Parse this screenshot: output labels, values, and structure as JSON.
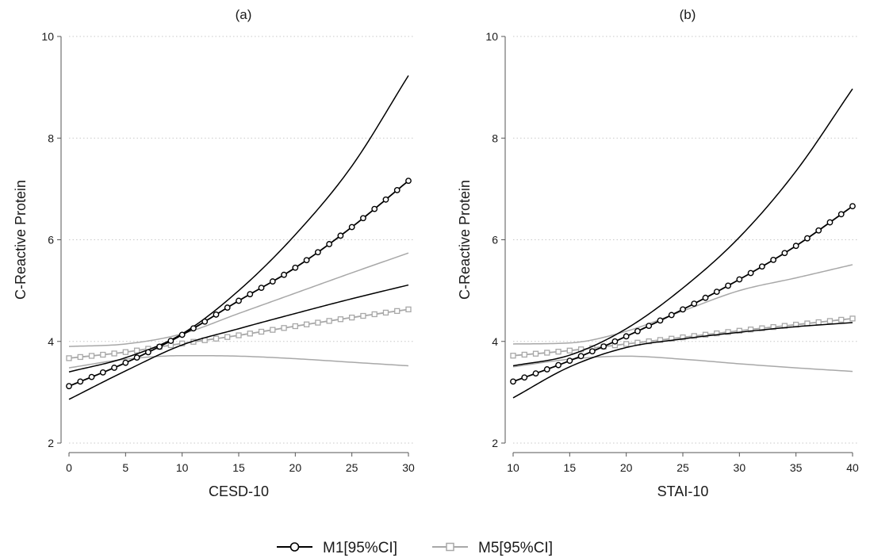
{
  "chart_data": [
    {
      "type": "line",
      "title": "(a)",
      "xlabel": "CESD-10",
      "ylabel": "C-Reactive Protein",
      "xlim": [
        0,
        30
      ],
      "ylim": [
        2,
        10
      ],
      "xticks": [
        0,
        5,
        10,
        15,
        20,
        25,
        30
      ],
      "yticks": [
        2,
        4,
        6,
        8,
        10
      ],
      "grid": "horizontal dotted",
      "series": [
        {
          "model": "M1",
          "role": "estimate",
          "marker": "circle",
          "color": "#000000",
          "x": [
            0,
            5,
            10,
            15,
            20,
            25,
            30
          ],
          "y": [
            3.12,
            3.58,
            4.13,
            4.8,
            5.45,
            6.25,
            7.16
          ]
        },
        {
          "model": "M1",
          "role": "upper",
          "marker": "none",
          "color": "#000000",
          "x": [
            0,
            5,
            10,
            15,
            20,
            25,
            30
          ],
          "y": [
            3.4,
            3.68,
            4.15,
            5.0,
            6.1,
            7.45,
            9.23
          ]
        },
        {
          "model": "M1",
          "role": "lower",
          "marker": "none",
          "color": "#000000",
          "x": [
            0,
            5,
            10,
            15,
            20,
            25,
            30
          ],
          "y": [
            2.86,
            3.42,
            3.93,
            4.25,
            4.55,
            4.84,
            5.11
          ]
        },
        {
          "model": "M5",
          "role": "estimate",
          "marker": "square",
          "color": "#a8a8a8",
          "x": [
            0,
            5,
            10,
            15,
            20,
            25,
            30
          ],
          "y": [
            3.67,
            3.79,
            3.96,
            4.12,
            4.3,
            4.47,
            4.63
          ]
        },
        {
          "model": "M5",
          "role": "upper",
          "marker": "none",
          "color": "#a8a8a8",
          "x": [
            0,
            5,
            10,
            15,
            20,
            25,
            30
          ],
          "y": [
            3.9,
            3.95,
            4.15,
            4.55,
            4.95,
            5.35,
            5.74
          ]
        },
        {
          "model": "M5",
          "role": "lower",
          "marker": "none",
          "color": "#a8a8a8",
          "x": [
            0,
            5,
            10,
            15,
            20,
            25,
            30
          ],
          "y": [
            3.48,
            3.65,
            3.72,
            3.71,
            3.66,
            3.59,
            3.52
          ]
        }
      ]
    },
    {
      "type": "line",
      "title": "(b)",
      "xlabel": "STAI-10",
      "ylabel": "C-Reactive Protein",
      "xlim": [
        10,
        40
      ],
      "ylim": [
        2,
        10
      ],
      "xticks": [
        10,
        15,
        20,
        25,
        30,
        35,
        40
      ],
      "yticks": [
        2,
        4,
        6,
        8,
        10
      ],
      "grid": "horizontal dotted",
      "series": [
        {
          "model": "M1",
          "role": "estimate",
          "marker": "circle",
          "color": "#000000",
          "x": [
            10,
            15,
            20,
            25,
            30,
            35,
            40
          ],
          "y": [
            3.21,
            3.62,
            4.1,
            4.63,
            5.22,
            5.88,
            6.66
          ]
        },
        {
          "model": "M1",
          "role": "upper",
          "marker": "none",
          "color": "#000000",
          "x": [
            10,
            15,
            20,
            25,
            30,
            35,
            40
          ],
          "y": [
            3.52,
            3.73,
            4.25,
            5.05,
            6.05,
            7.35,
            8.97
          ]
        },
        {
          "model": "M1",
          "role": "lower",
          "marker": "none",
          "color": "#000000",
          "x": [
            10,
            15,
            20,
            25,
            30,
            35,
            40
          ],
          "y": [
            2.89,
            3.5,
            3.88,
            4.05,
            4.18,
            4.29,
            4.37
          ]
        },
        {
          "model": "M5",
          "role": "estimate",
          "marker": "square",
          "color": "#a8a8a8",
          "x": [
            10,
            15,
            20,
            25,
            30,
            35,
            40
          ],
          "y": [
            3.72,
            3.82,
            3.95,
            4.08,
            4.21,
            4.33,
            4.45
          ]
        },
        {
          "model": "M5",
          "role": "upper",
          "marker": "none",
          "color": "#a8a8a8",
          "x": [
            10,
            15,
            20,
            25,
            30,
            35,
            40
          ],
          "y": [
            3.95,
            3.97,
            4.2,
            4.6,
            5.0,
            5.25,
            5.51
          ]
        },
        {
          "model": "M5",
          "role": "lower",
          "marker": "none",
          "color": "#a8a8a8",
          "x": [
            10,
            15,
            20,
            25,
            30,
            35,
            40
          ],
          "y": [
            3.5,
            3.65,
            3.71,
            3.65,
            3.56,
            3.48,
            3.41
          ]
        }
      ]
    }
  ],
  "legend": {
    "position": "bottom-center",
    "items": [
      {
        "model": "M1",
        "label": "M1[95%CI]",
        "marker": "circle",
        "color": "#000000"
      },
      {
        "model": "M5",
        "label": "M5[95%CI]",
        "marker": "square",
        "color": "#a8a8a8"
      }
    ]
  }
}
